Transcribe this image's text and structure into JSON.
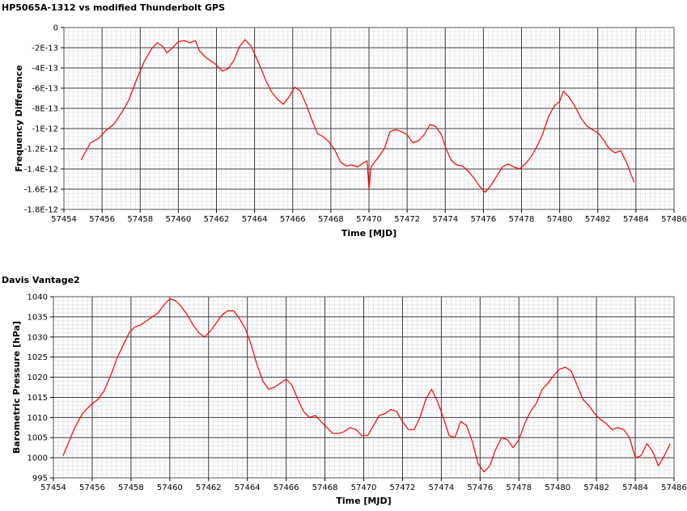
{
  "chart_data": [
    {
      "type": "line",
      "title": "HP5065A-1312 vs modified Thunderbolt GPS",
      "xlabel": "Time [MJD]",
      "ylabel": "Frequency Difference",
      "xlim": [
        57454,
        57486
      ],
      "ylim": [
        -1.8e-12,
        0
      ],
      "xticks": [
        "57454",
        "57456",
        "57458",
        "57460",
        "57462",
        "57464",
        "57466",
        "57468",
        "57470",
        "57472",
        "57474",
        "57476",
        "57478",
        "57480",
        "57482",
        "57484",
        "57486"
      ],
      "yticks": [
        "0",
        "-2E-13",
        "-4E-13",
        "-6E-13",
        "-8E-13",
        "-1E-12",
        "-1.2E-12",
        "-1.4E-12",
        "-1.6E-12",
        "-1.8E-12"
      ],
      "grid": true,
      "line_color": "#ff0000",
      "series": [
        {
          "x": [
            57454.9,
            57455.1,
            57455.4,
            57455.8,
            57456.2,
            57456.6,
            57457.0,
            57457.4,
            57457.8,
            57458.2,
            57458.6,
            57458.9,
            57459.2,
            57459.4,
            57459.7,
            57460.0,
            57460.3,
            57460.6,
            57460.9,
            57461.1,
            57461.4,
            57461.7,
            57462.0,
            57462.3,
            57462.6,
            57462.9,
            57463.2,
            57463.5,
            57463.8,
            57464.0,
            57464.3,
            57464.6,
            57464.9,
            57465.2,
            57465.5,
            57465.8,
            57466.1,
            57466.4,
            57466.7,
            57467.0,
            57467.3,
            57467.6,
            57467.9,
            57468.2,
            57468.5,
            57468.8,
            57469.1,
            57469.4,
            57469.7,
            57469.9,
            57470.0,
            57470.1,
            57470.3,
            57470.5,
            57470.8,
            57471.1,
            57471.4,
            57471.7,
            57472.0,
            57472.3,
            57472.6,
            57472.9,
            57473.2,
            57473.5,
            57473.8,
            57474.0,
            57474.3,
            57474.6,
            57474.9,
            57475.2,
            57475.5,
            57475.8,
            57476.1,
            57476.4,
            57476.7,
            57477.0,
            57477.3,
            57477.6,
            57477.9,
            57478.2,
            57478.5,
            57478.8,
            57479.1,
            57479.4,
            57479.7,
            57480.0,
            57480.2,
            57480.5,
            57480.8,
            57481.1,
            57481.4,
            57481.7,
            57482.0,
            57482.3,
            57482.6,
            57482.9,
            57483.2,
            57483.5,
            57483.9
          ],
          "y": [
            -1.31e-12,
            -1.24e-12,
            -1.14e-12,
            -1.1e-12,
            -1.02e-12,
            -9.6e-13,
            -8.5e-13,
            -7.2e-13,
            -5.2e-13,
            -3.4e-13,
            -2.1e-13,
            -1.5e-13,
            -1.9e-13,
            -2.5e-13,
            -2e-13,
            -1.4e-13,
            -1.3e-13,
            -1.5e-13,
            -1.3e-13,
            -2.3e-13,
            -2.9e-13,
            -3.3e-13,
            -3.7e-13,
            -4.3e-13,
            -4.1e-13,
            -3.3e-13,
            -1.9e-13,
            -1.2e-13,
            -1.8e-13,
            -2.6e-13,
            -3.9e-13,
            -5.3e-13,
            -6.4e-13,
            -7.1e-13,
            -7.6e-13,
            -6.9e-13,
            -5.9e-13,
            -6.3e-13,
            -7.6e-13,
            -9.1e-13,
            -1.05e-12,
            -1.08e-12,
            -1.13e-12,
            -1.21e-12,
            -1.33e-12,
            -1.37e-12,
            -1.36e-12,
            -1.38e-12,
            -1.34e-12,
            -1.32e-12,
            -1.6e-12,
            -1.38e-12,
            -1.33e-12,
            -1.28e-12,
            -1.2e-12,
            -1.03e-12,
            -1.01e-12,
            -1.03e-12,
            -1.06e-12,
            -1.14e-12,
            -1.12e-12,
            -1.06e-12,
            -9.6e-13,
            -9.8e-13,
            -1.06e-12,
            -1.18e-12,
            -1.31e-12,
            -1.36e-12,
            -1.37e-12,
            -1.42e-12,
            -1.49e-12,
            -1.57e-12,
            -1.63e-12,
            -1.56e-12,
            -1.47e-12,
            -1.38e-12,
            -1.35e-12,
            -1.38e-12,
            -1.4e-12,
            -1.35e-12,
            -1.28e-12,
            -1.18e-12,
            -1.06e-12,
            -8.9e-13,
            -7.8e-13,
            -7.3e-13,
            -6.3e-13,
            -6.9e-13,
            -7.8e-13,
            -8.9e-13,
            -9.7e-13,
            -1.01e-12,
            -1.04e-12,
            -1.11e-12,
            -1.2e-12,
            -1.24e-12,
            -1.22e-12,
            -1.33e-12,
            -1.53e-12
          ]
        }
      ]
    },
    {
      "type": "line",
      "title": "Davis Vantage2",
      "xlabel": "Time [MJD]",
      "ylabel": "Barometric Pressure [hPa]",
      "xlim": [
        57454,
        57486
      ],
      "ylim": [
        995,
        1040
      ],
      "xticks": [
        "57454",
        "57456",
        "57458",
        "57460",
        "57462",
        "57464",
        "57466",
        "57468",
        "57470",
        "57472",
        "57474",
        "57476",
        "57478",
        "57480",
        "57482",
        "57484",
        "57486"
      ],
      "yticks": [
        "1040",
        "1035",
        "1030",
        "1025",
        "1020",
        "1015",
        "1010",
        "1005",
        "1000",
        "995"
      ],
      "grid": true,
      "line_color": "#ff0000",
      "series": [
        {
          "x": [
            57454.5,
            57454.8,
            57455.1,
            57455.5,
            57455.9,
            57456.3,
            57456.6,
            57457.0,
            57457.3,
            57457.6,
            57457.9,
            57458.2,
            57458.5,
            57458.8,
            57459.1,
            57459.4,
            57459.7,
            57460.0,
            57460.3,
            57460.6,
            57460.9,
            57461.2,
            57461.5,
            57461.8,
            57462.1,
            57462.4,
            57462.7,
            57463.0,
            57463.3,
            57463.6,
            57463.9,
            57464.2,
            57464.5,
            57464.8,
            57465.1,
            57465.4,
            57465.7,
            57466.0,
            57466.3,
            57466.6,
            57466.9,
            57467.2,
            57467.5,
            57467.8,
            57468.1,
            57468.4,
            57468.7,
            57469.0,
            57469.3,
            57469.6,
            57469.9,
            57470.2,
            57470.5,
            57470.8,
            57471.1,
            57471.4,
            57471.7,
            57472.0,
            57472.3,
            57472.6,
            57472.9,
            57473.2,
            57473.5,
            57473.8,
            57474.1,
            57474.4,
            57474.7,
            57475.0,
            57475.3,
            57475.6,
            57475.9,
            57476.2,
            57476.5,
            57476.8,
            57477.1,
            57477.4,
            57477.7,
            57478.0,
            57478.3,
            57478.6,
            57478.9,
            57479.2,
            57479.5,
            57479.8,
            57480.1,
            57480.4,
            57480.7,
            57481.0,
            57481.3,
            57481.6,
            57481.9,
            57482.2,
            57482.5,
            57482.8,
            57483.1,
            57483.4,
            57483.7,
            57484.0,
            57484.3,
            57484.6,
            57484.9,
            57485.2,
            57485.5,
            57485.8
          ],
          "y": [
            1000.5,
            1004.0,
            1007.5,
            1011.0,
            1013.0,
            1014.5,
            1016.5,
            1021.0,
            1025.0,
            1028.0,
            1031.0,
            1032.5,
            1033.0,
            1034.0,
            1035.0,
            1036.0,
            1038.0,
            1039.5,
            1039.0,
            1037.5,
            1035.5,
            1033.0,
            1031.0,
            1030.0,
            1031.5,
            1033.5,
            1035.5,
            1036.5,
            1036.5,
            1034.5,
            1032.0,
            1028.0,
            1023.0,
            1019.0,
            1017.0,
            1017.5,
            1018.5,
            1019.5,
            1018.0,
            1014.5,
            1011.5,
            1010.0,
            1010.5,
            1009.0,
            1007.5,
            1006.0,
            1006.0,
            1006.5,
            1007.5,
            1007.0,
            1005.5,
            1005.5,
            1008.0,
            1010.5,
            1011.0,
            1012.0,
            1011.5,
            1009.0,
            1007.0,
            1007.0,
            1010.0,
            1014.5,
            1017.0,
            1014.0,
            1010.0,
            1005.5,
            1005.0,
            1009.0,
            1008.0,
            1004.0,
            998.5,
            996.5,
            998.0,
            1002.0,
            1005.0,
            1004.5,
            1002.5,
            1004.5,
            1008.5,
            1011.5,
            1013.5,
            1017.0,
            1018.5,
            1020.5,
            1022.0,
            1022.5,
            1021.5,
            1018.0,
            1014.5,
            1013.0,
            1011.0,
            1009.5,
            1008.5,
            1007.0,
            1007.5,
            1007.0,
            1005.0,
            1000.0,
            1000.5,
            1003.5,
            1001.5,
            998.0,
            1000.5,
            1003.5
          ]
        }
      ]
    }
  ]
}
